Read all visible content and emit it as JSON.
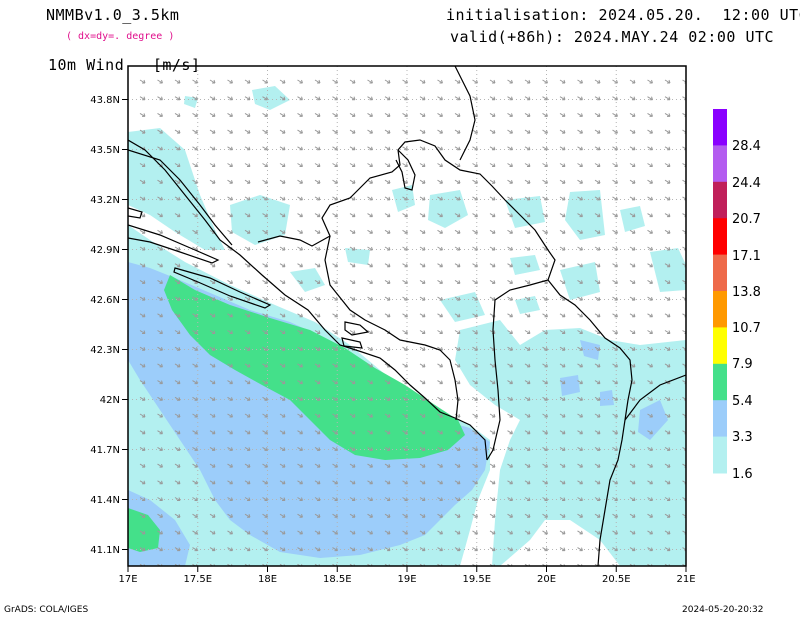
{
  "header": {
    "model": "NMMBv1.0_3.5km",
    "grid": "( dx=dy=. degree )",
    "init": "initialisation: 2024.05.20.  12:00 UTC",
    "valid": "valid(+86h): 2024.MAY.24 02:00 UTC",
    "field": "10m Wind   [m/s]"
  },
  "axes": {
    "lon_ticks": [
      "17E",
      "17.5E",
      "18E",
      "18.5E",
      "19E",
      "19.5E",
      "20E",
      "20.5E",
      "21E"
    ],
    "lat_ticks": [
      "43.8N",
      "43.5N",
      "43.2N",
      "42.9N",
      "42.6N",
      "42.3N",
      "42N",
      "41.7N",
      "41.4N",
      "41.1N"
    ]
  },
  "legend": {
    "labels": [
      "28.4",
      "24.4",
      "20.7",
      "17.1",
      "13.8",
      "10.7",
      "7.9",
      "5.4",
      "3.3",
      "1.6"
    ],
    "colors": [
      "#8a00ff",
      "#b35cf0",
      "#c01f5a",
      "#ff0000",
      "#ee6a4a",
      "#ff9900",
      "#ffff00",
      "#44e08a",
      "#9ccdfa",
      "#b3f0f0"
    ]
  },
  "footer": {
    "left": "GrADS: COLA/IGES",
    "right": "2024-05-20-20:32"
  }
}
